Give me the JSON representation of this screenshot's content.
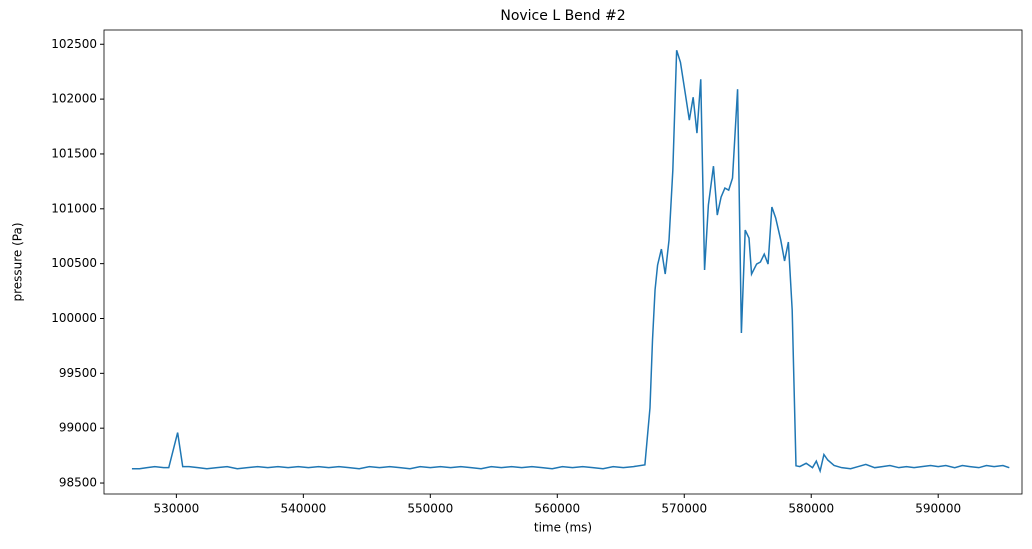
{
  "chart_data": {
    "type": "line",
    "title": "Novice L Bend #2",
    "x_label": "time (ms)",
    "y_label": "pressure (Pa)",
    "x": [
      526500,
      527100,
      527700,
      528300,
      529000,
      529400,
      530100,
      530500,
      531000,
      531700,
      532400,
      533200,
      534000,
      534800,
      535600,
      536400,
      537200,
      538000,
      538800,
      539600,
      540400,
      541200,
      542000,
      542800,
      543600,
      544400,
      545200,
      546000,
      546800,
      547600,
      548400,
      549200,
      550000,
      550800,
      551600,
      552400,
      553200,
      554000,
      554800,
      555600,
      556400,
      557200,
      558000,
      558800,
      559600,
      560400,
      561200,
      562000,
      562800,
      563600,
      564400,
      565200,
      566000,
      566900,
      567300,
      567500,
      567700,
      567900,
      568200,
      568500,
      568800,
      569100,
      569400,
      569700,
      570100,
      570400,
      570700,
      571000,
      571300,
      571600,
      571900,
      572300,
      572600,
      572900,
      573200,
      573500,
      573800,
      574200,
      574500,
      574800,
      575100,
      575300,
      575700,
      576000,
      576300,
      576600,
      576900,
      577200,
      577600,
      577900,
      578200,
      578500,
      578800,
      579100,
      579600,
      580100,
      580400,
      580700,
      581000,
      581300,
      581800,
      582400,
      583100,
      583700,
      584300,
      585000,
      585600,
      586200,
      586900,
      587500,
      588100,
      588700,
      589400,
      590000,
      590600,
      591300,
      591900,
      592500,
      593200,
      593800,
      594400,
      595100,
      595600
    ],
    "series": [
      {
        "name": "pressure",
        "color": "#1f77b4",
        "values": [
          98630,
          98630,
          98640,
          98650,
          98640,
          98640,
          98960,
          98650,
          98650,
          98640,
          98630,
          98640,
          98650,
          98630,
          98640,
          98650,
          98640,
          98650,
          98640,
          98650,
          98640,
          98650,
          98640,
          98650,
          98640,
          98630,
          98650,
          98640,
          98650,
          98640,
          98630,
          98650,
          98640,
          98650,
          98640,
          98650,
          98640,
          98630,
          98650,
          98640,
          98650,
          98640,
          98650,
          98640,
          98630,
          98650,
          98640,
          98650,
          98640,
          98630,
          98650,
          98640,
          98650,
          98666,
          99185,
          99804,
          100260,
          100487,
          100633,
          100405,
          100715,
          101352,
          102445,
          102336,
          102036,
          101808,
          102017,
          101690,
          102181,
          100442,
          101034,
          101389,
          100943,
          101107,
          101189,
          101170,
          101280,
          102090,
          99868,
          100806,
          100733,
          100405,
          100496,
          100515,
          100587,
          100496,
          101016,
          100916,
          100715,
          100524,
          100697,
          100078,
          98657,
          98650,
          98680,
          98640,
          98700,
          98610,
          98760,
          98710,
          98660,
          98640,
          98630,
          98650,
          98670,
          98640,
          98650,
          98660,
          98640,
          98650,
          98640,
          98650,
          98660,
          98650,
          98660,
          98640,
          98660,
          98650,
          98640,
          98660,
          98650,
          98660,
          98640
        ]
      }
    ],
    "xlim": [
      524300,
      596600
    ],
    "ylim": [
      98400,
      102630
    ],
    "xticks": [
      530000,
      540000,
      550000,
      560000,
      570000,
      580000,
      590000
    ],
    "yticks": [
      98500,
      99000,
      99500,
      100000,
      100500,
      101000,
      101500,
      102000,
      102500
    ]
  }
}
